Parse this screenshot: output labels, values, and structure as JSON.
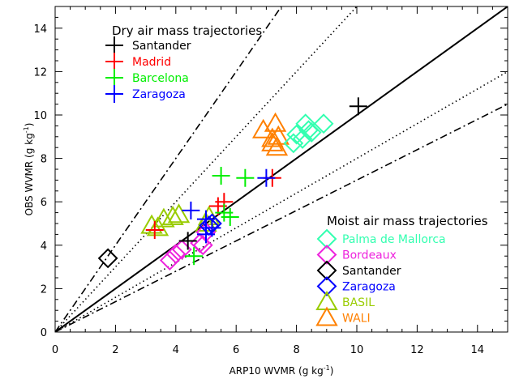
{
  "chart_data": {
    "type": "scatter",
    "title": "",
    "xlabel": "ARP10 WVMR (g kg",
    "xlabel_sup": "-1",
    "xlabel_end": ")",
    "ylabel": "OBS WVMR (g kg",
    "ylabel_sup": "-1",
    "ylabel_end": ")",
    "xlim": [
      0,
      15
    ],
    "ylim": [
      0,
      15
    ],
    "xticks": [
      "0",
      "2",
      "4",
      "6",
      "8",
      "10",
      "12",
      "14"
    ],
    "yticks": [
      "0",
      "2",
      "4",
      "6",
      "8",
      "10",
      "12",
      "14"
    ],
    "grid": false,
    "reference_lines": [
      {
        "style": "solid",
        "slope": 1.0
      },
      {
        "style": "dotted",
        "slope": 1.5
      },
      {
        "style": "dotted",
        "slope": 0.8
      },
      {
        "style": "dashdot",
        "slope": 2.0
      },
      {
        "style": "dashdot",
        "slope": 0.7
      }
    ],
    "legend_dry": {
      "title": "Dry air mass trajectories",
      "placement": "top-left",
      "entries": [
        {
          "label": "Santander",
          "color": "#000000",
          "marker": "plus"
        },
        {
          "label": "Madrid",
          "color": "#ff0000",
          "marker": "plus"
        },
        {
          "label": "Barcelona",
          "color": "#00ee00",
          "marker": "plus"
        },
        {
          "label": "Zaragoza",
          "color": "#0000ff",
          "marker": "plus"
        }
      ]
    },
    "legend_moist": {
      "title": "Moist air mass trajectories",
      "placement": "bottom-right",
      "entries": [
        {
          "label": "Palma de Mallorca",
          "color": "#33ffb0",
          "marker": "diamond"
        },
        {
          "label": "Bordeaux",
          "color": "#ee22dd",
          "marker": "diamond"
        },
        {
          "label": "Santander",
          "color": "#000000",
          "marker": "diamond"
        },
        {
          "label": "Zaragoza",
          "color": "#0000ff",
          "marker": "diamond"
        },
        {
          "label": "BASIL",
          "color": "#99cc00",
          "marker": "triangle"
        },
        {
          "label": "WALI",
          "color": "#ff8000",
          "marker": "triangle"
        }
      ]
    },
    "series": [
      {
        "color": "#000000",
        "marker": "plus",
        "points": [
          [
            10.05,
            10.4
          ],
          [
            4.4,
            4.2
          ]
        ]
      },
      {
        "color": "#ff0000",
        "marker": "plus",
        "points": [
          [
            3.3,
            4.7
          ],
          [
            5.4,
            5.8
          ],
          [
            5.6,
            6.0
          ],
          [
            7.2,
            7.1
          ]
        ]
      },
      {
        "color": "#00ee00",
        "marker": "plus",
        "points": [
          [
            5.5,
            7.2
          ],
          [
            6.3,
            7.1
          ],
          [
            5.6,
            5.5
          ],
          [
            5.8,
            5.3
          ],
          [
            4.6,
            3.5
          ]
        ]
      },
      {
        "color": "#0000ff",
        "marker": "plus",
        "points": [
          [
            4.5,
            5.6
          ],
          [
            7.0,
            7.1
          ],
          [
            5.0,
            5.2
          ],
          [
            5.2,
            4.8
          ],
          [
            5.0,
            4.5
          ]
        ]
      },
      {
        "color": "#33ffb0",
        "marker": "diamond",
        "points": [
          [
            8.3,
            9.6
          ],
          [
            8.9,
            9.6
          ],
          [
            8.4,
            9.3
          ],
          [
            8.0,
            9.1
          ],
          [
            8.5,
            9.2
          ],
          [
            8.2,
            8.9
          ],
          [
            7.9,
            8.7
          ]
        ]
      },
      {
        "color": "#ee22dd",
        "marker": "diamond",
        "points": [
          [
            3.8,
            3.3
          ],
          [
            4.0,
            3.6
          ],
          [
            4.2,
            3.8
          ],
          [
            4.8,
            4.1
          ],
          [
            4.9,
            4.0
          ],
          [
            5.0,
            4.6
          ]
        ]
      },
      {
        "color": "#000000",
        "marker": "diamond",
        "points": [
          [
            1.75,
            3.4
          ]
        ]
      },
      {
        "color": "#0000ff",
        "marker": "diamond",
        "points": [
          [
            5.1,
            4.9
          ],
          [
            5.2,
            5.0
          ]
        ]
      },
      {
        "color": "#99cc00",
        "marker": "triangle",
        "points": [
          [
            3.2,
            4.9
          ],
          [
            3.6,
            5.2
          ],
          [
            3.9,
            5.3
          ],
          [
            4.1,
            5.4
          ],
          [
            5.1,
            5.3
          ],
          [
            5.0,
            5.0
          ],
          [
            3.4,
            4.8
          ]
        ]
      },
      {
        "color": "#ff8000",
        "marker": "triangle",
        "points": [
          [
            6.9,
            9.3
          ],
          [
            7.3,
            9.6
          ],
          [
            7.2,
            8.9
          ],
          [
            7.4,
            9.0
          ],
          [
            7.35,
            8.5
          ],
          [
            7.2,
            8.7
          ]
        ]
      }
    ]
  }
}
